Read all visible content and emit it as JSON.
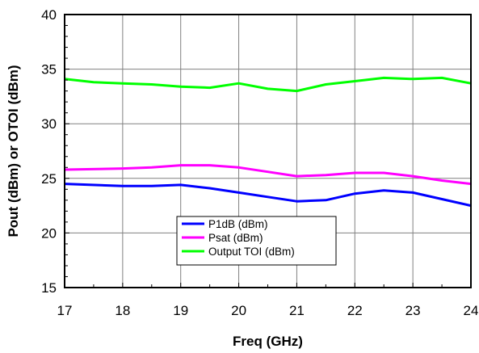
{
  "chart_data": {
    "type": "line",
    "title": "",
    "xlabel": "Freq (GHz)",
    "ylabel": "Pout (dBm) or OTOI (dBm)",
    "xlim": [
      17,
      24
    ],
    "ylim": [
      15,
      40
    ],
    "xticks": [
      "17",
      "18",
      "19",
      "20",
      "21",
      "22",
      "23",
      "24"
    ],
    "yticks": [
      "15",
      "20",
      "25",
      "30",
      "35",
      "40"
    ],
    "grid": true,
    "legend_position": "bottom-center",
    "series": [
      {
        "name": "P1dB (dBm)",
        "color": "#0000ff",
        "x": [
          17,
          18,
          18.5,
          19,
          19.5,
          20,
          20.5,
          21,
          21.5,
          22,
          22.5,
          23,
          23.5,
          24
        ],
        "y": [
          24.5,
          24.3,
          24.3,
          24.4,
          24.1,
          23.7,
          23.3,
          22.9,
          23.0,
          23.6,
          23.9,
          23.7,
          23.1,
          22.5
        ]
      },
      {
        "name": "Psat (dBm)",
        "color": "#ff00ff",
        "x": [
          17,
          18,
          18.5,
          19,
          19.5,
          20,
          20.5,
          21,
          21.5,
          22,
          22.5,
          23,
          23.5,
          24
        ],
        "y": [
          25.8,
          25.9,
          26.0,
          26.2,
          26.2,
          26.0,
          25.6,
          25.2,
          25.3,
          25.5,
          25.5,
          25.2,
          24.8,
          24.5
        ]
      },
      {
        "name": "Output TOI (dBm)",
        "color": "#00ff00",
        "x": [
          17,
          17.5,
          18,
          18.5,
          19,
          19.5,
          20,
          20.5,
          21,
          21.5,
          22,
          22.5,
          23,
          23.5,
          24
        ],
        "y": [
          34.1,
          33.8,
          33.7,
          33.6,
          33.4,
          33.3,
          33.7,
          33.2,
          33.0,
          33.6,
          33.9,
          34.2,
          34.1,
          34.2,
          33.7
        ]
      }
    ]
  }
}
